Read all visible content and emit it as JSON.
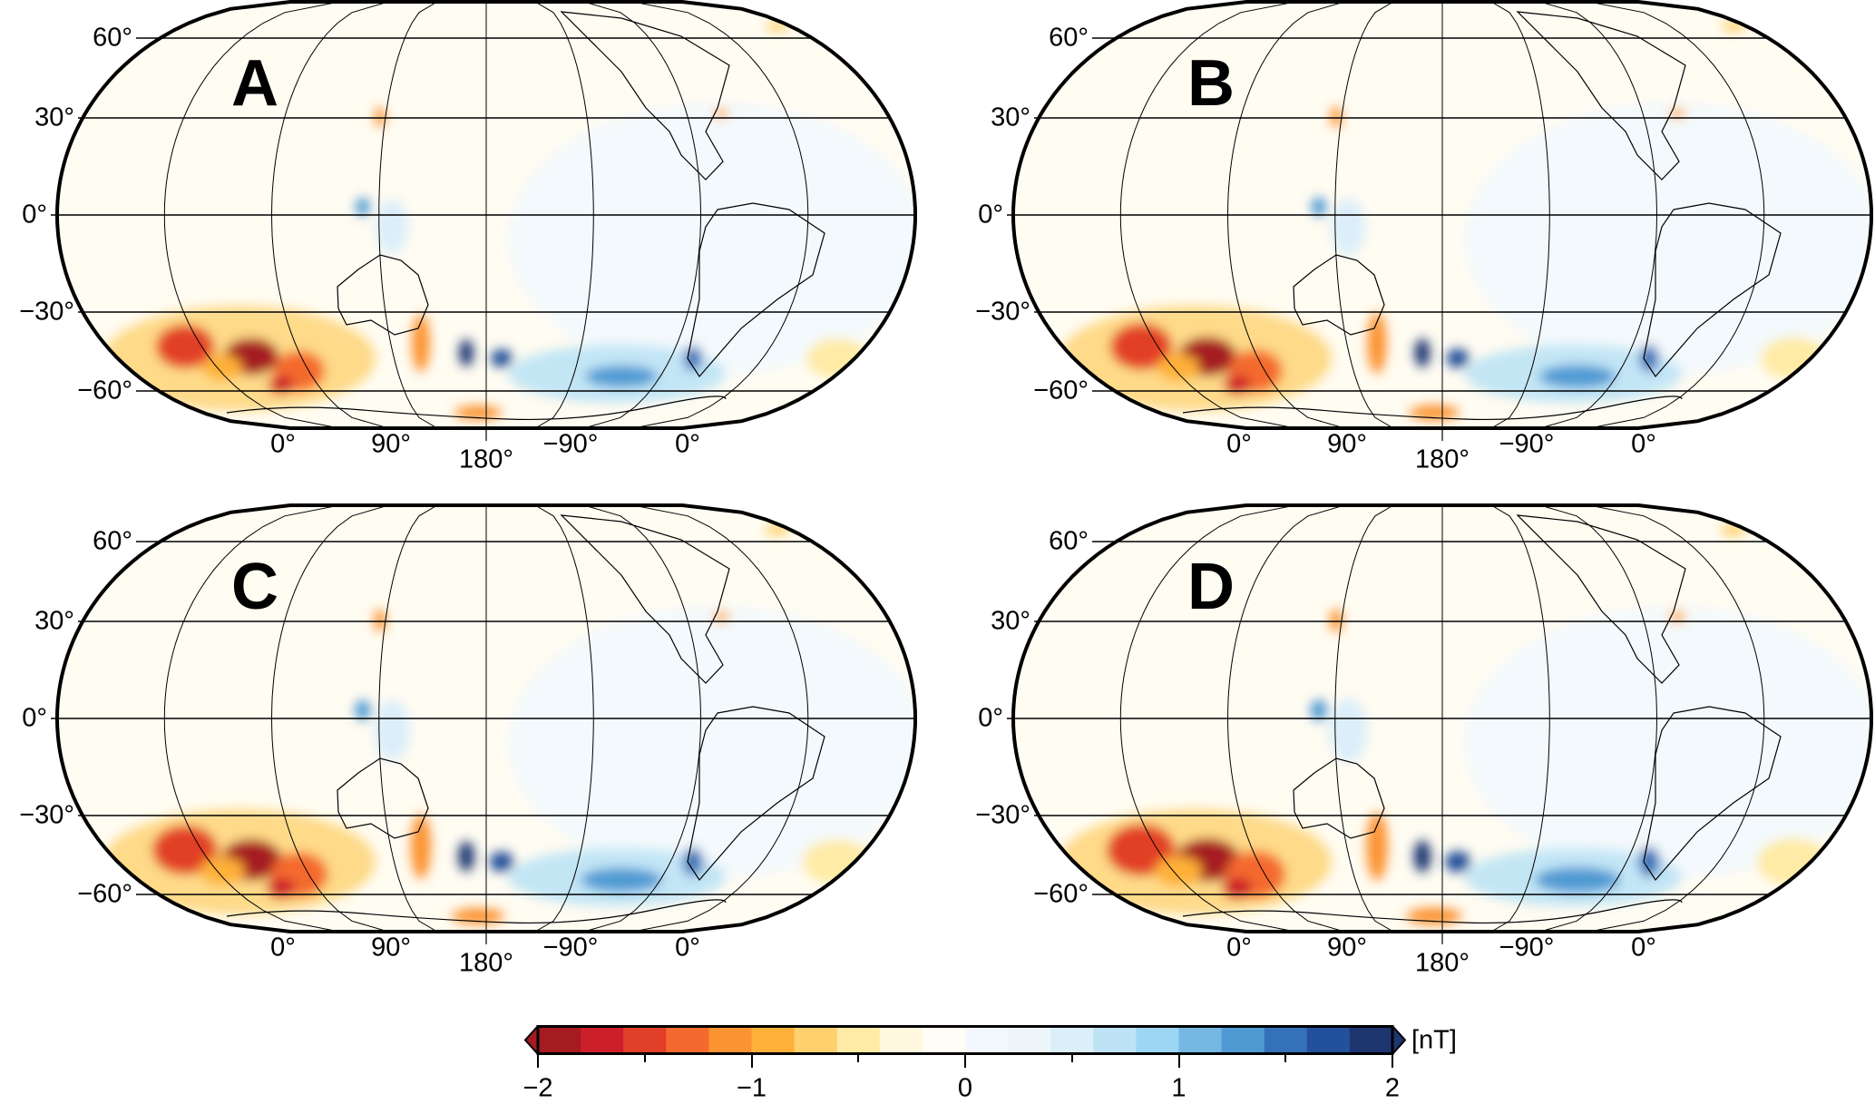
{
  "panels": [
    {
      "label": "A"
    },
    {
      "label": "B"
    },
    {
      "label": "C"
    },
    {
      "label": "D"
    }
  ],
  "lat_labels": [
    "60°",
    "30°",
    "0°",
    "−30°",
    "−60°"
  ],
  "lon_labels": [
    "0°",
    "90°",
    "180°",
    "−90°",
    "0°"
  ],
  "colorbar": {
    "unit": "[nT]",
    "range": [
      -2,
      2
    ],
    "tick_labels": [
      "−2",
      "−1",
      "0",
      "1",
      "2"
    ],
    "extend": "both",
    "colors": [
      "#a51b20",
      "#cc1f2a",
      "#e23f28",
      "#f46a2e",
      "#fb9333",
      "#feb038",
      "#fed16e",
      "#ffeba5",
      "#fff7de",
      "#fffdf6",
      "#f2f8fd",
      "#eef6fc",
      "#dbeef9",
      "#bde3f5",
      "#9dd6f4",
      "#74b7e2",
      "#509ad3",
      "#3471b8",
      "#23509a",
      "#1e3670"
    ]
  }
}
